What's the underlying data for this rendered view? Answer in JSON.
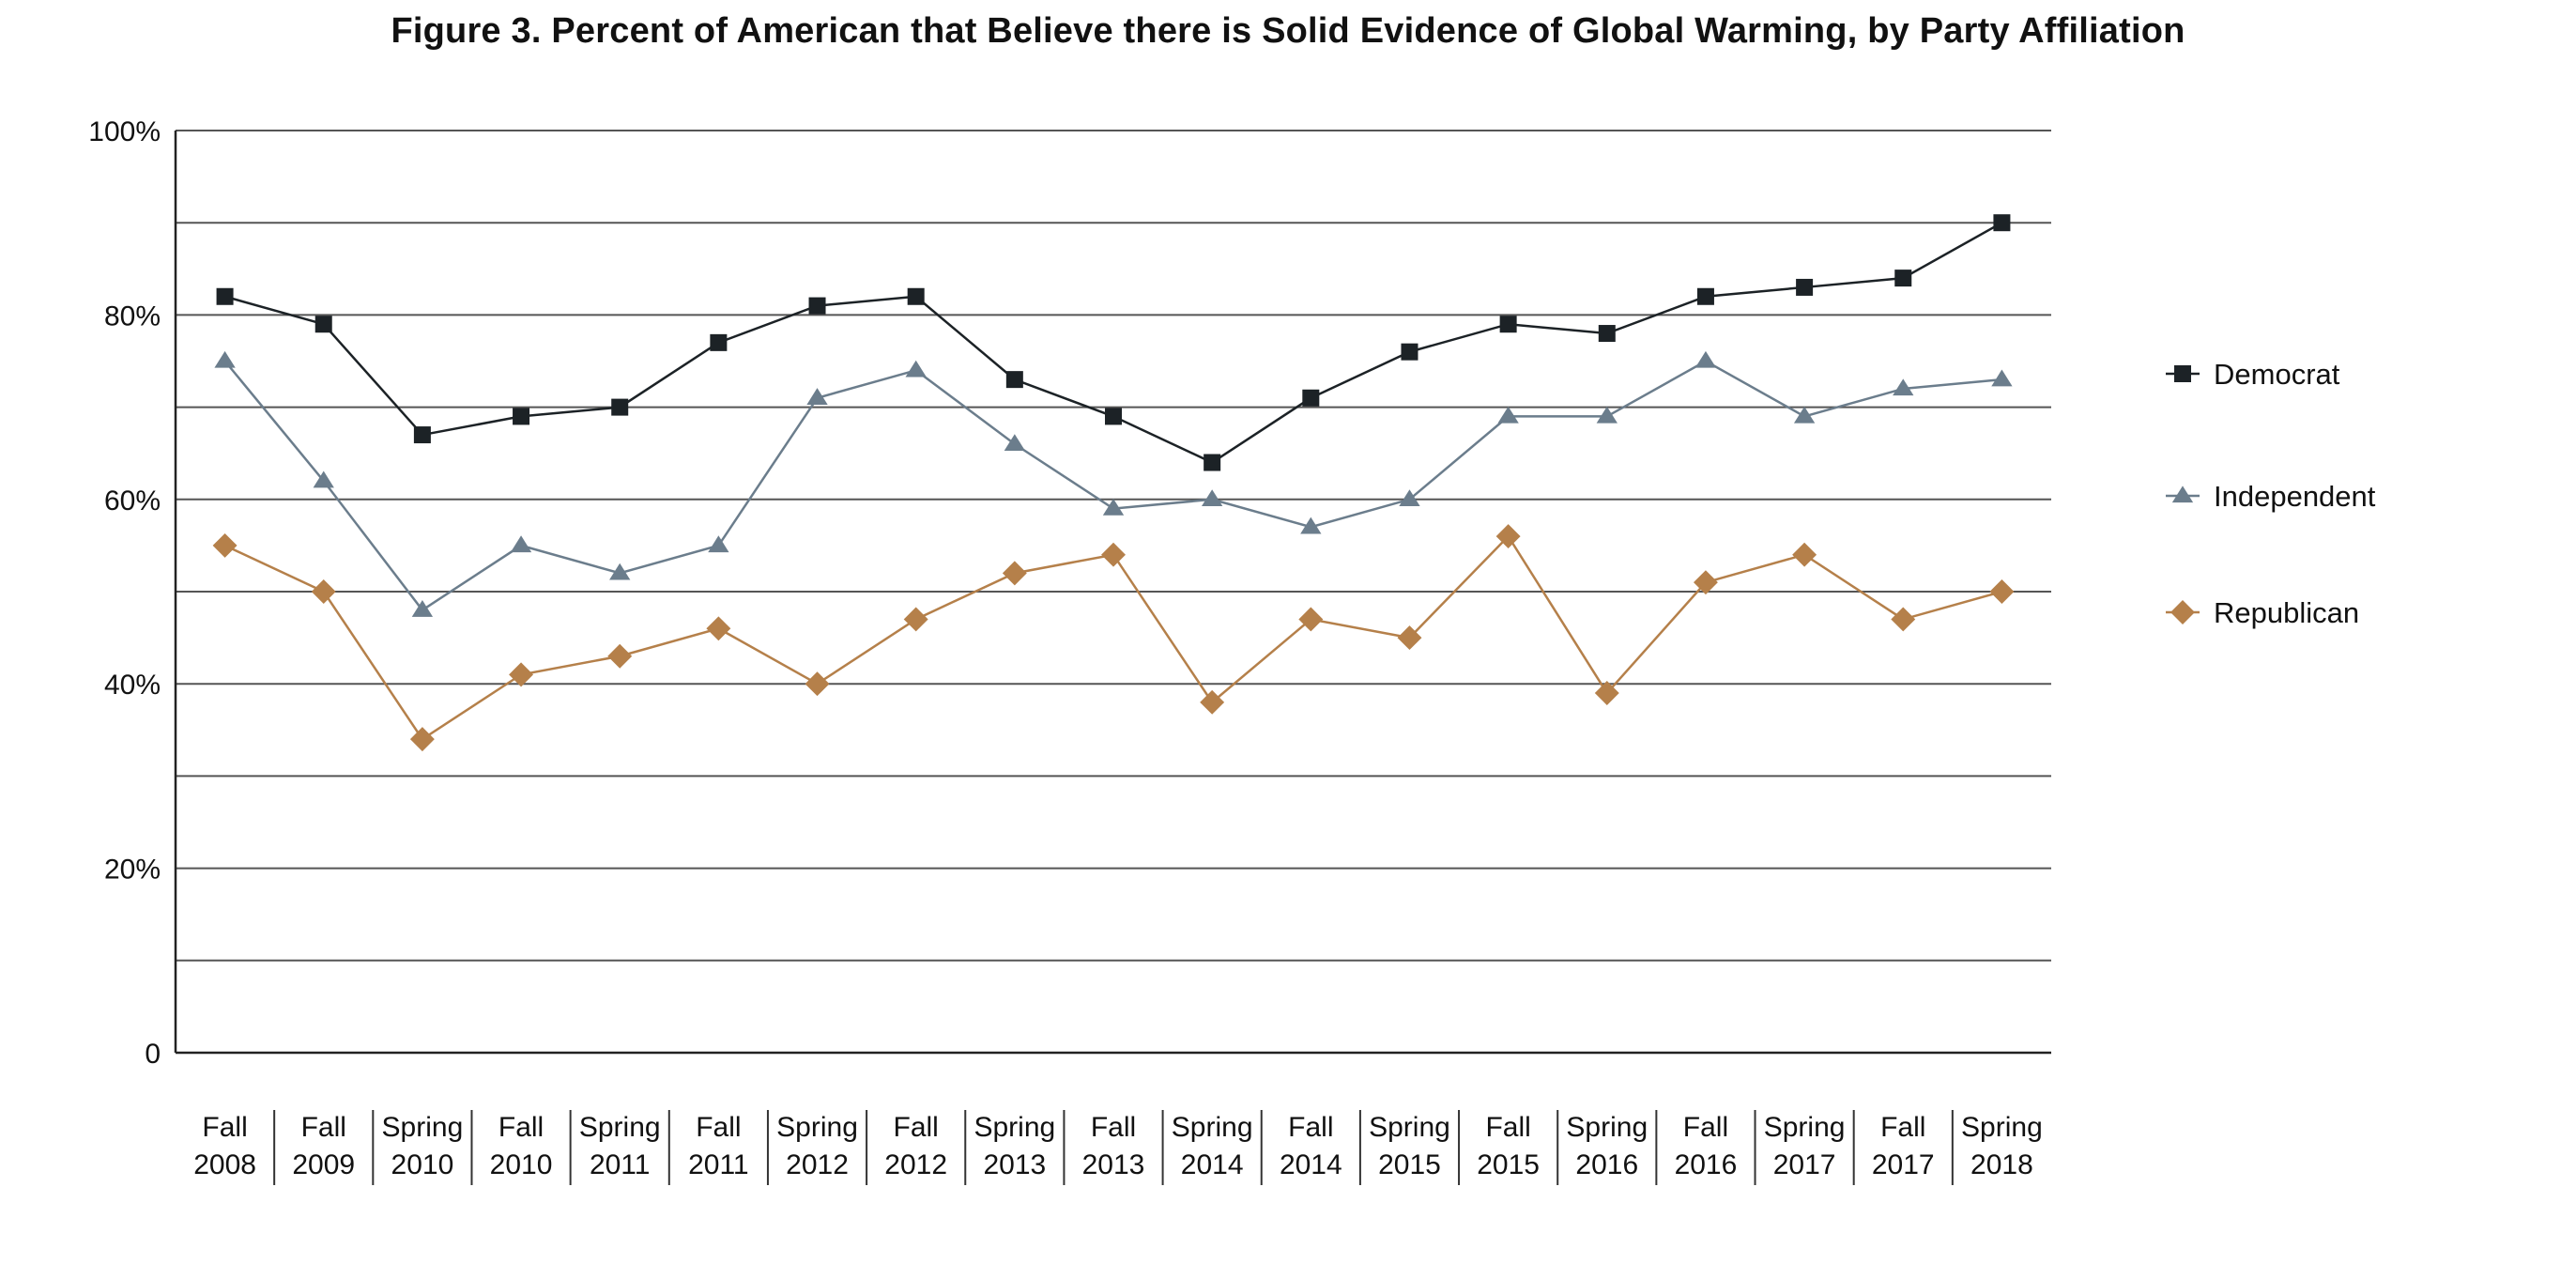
{
  "chart_data": {
    "type": "line",
    "title": "Figure 3. Percent of American that Believe there is Solid Evidence of Global Warming, by Party Affiliation",
    "xlabel": "",
    "ylabel": "",
    "ylim": [
      0,
      100
    ],
    "grid": true,
    "legend_position": "right",
    "y_ticks": [
      {
        "value": 0,
        "label": "0"
      },
      {
        "value": 10,
        "label": ""
      },
      {
        "value": 20,
        "label": "20%"
      },
      {
        "value": 30,
        "label": ""
      },
      {
        "value": 40,
        "label": "40%"
      },
      {
        "value": 50,
        "label": ""
      },
      {
        "value": 60,
        "label": "60%"
      },
      {
        "value": 70,
        "label": ""
      },
      {
        "value": 80,
        "label": "80%"
      },
      {
        "value": 90,
        "label": ""
      },
      {
        "value": 100,
        "label": "100%"
      }
    ],
    "categories": [
      [
        "Fall",
        "2008"
      ],
      [
        "Fall",
        "2009"
      ],
      [
        "Spring",
        "2010"
      ],
      [
        "Fall",
        "2010"
      ],
      [
        "Spring",
        "2011"
      ],
      [
        "Fall",
        "2011"
      ],
      [
        "Spring",
        "2012"
      ],
      [
        "Fall",
        "2012"
      ],
      [
        "Spring",
        "2013"
      ],
      [
        "Fall",
        "2013"
      ],
      [
        "Spring",
        "2014"
      ],
      [
        "Fall",
        "2014"
      ],
      [
        "Spring",
        "2015"
      ],
      [
        "Fall",
        "2015"
      ],
      [
        "Spring",
        "2016"
      ],
      [
        "Fall",
        "2016"
      ],
      [
        "Spring",
        "2017"
      ],
      [
        "Fall",
        "2017"
      ],
      [
        "Spring",
        "2018"
      ]
    ],
    "series": [
      {
        "name": "Democrat",
        "marker": "square",
        "color": "#1c2226",
        "values": [
          82,
          79,
          67,
          69,
          70,
          77,
          81,
          82,
          73,
          69,
          64,
          71,
          76,
          79,
          78,
          82,
          83,
          84,
          90
        ]
      },
      {
        "name": "Independent",
        "marker": "triangle",
        "color": "#6b7d8c",
        "values": [
          75,
          62,
          48,
          55,
          52,
          55,
          71,
          74,
          66,
          59,
          60,
          57,
          60,
          69,
          69,
          75,
          69,
          72,
          73
        ]
      },
      {
        "name": "Republican",
        "marker": "diamond",
        "color": "#b5804a",
        "values": [
          55,
          50,
          34,
          41,
          43,
          46,
          40,
          47,
          52,
          54,
          38,
          47,
          45,
          56,
          39,
          51,
          54,
          47,
          50
        ]
      }
    ]
  }
}
